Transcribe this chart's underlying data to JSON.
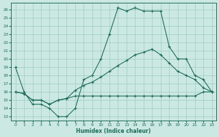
{
  "xlabel": "Humidex (Indice chaleur)",
  "xlim_min": -0.5,
  "xlim_max": 23.5,
  "ylim_min": 12.5,
  "ylim_max": 26.8,
  "yticks": [
    13,
    14,
    15,
    16,
    17,
    18,
    19,
    20,
    21,
    22,
    23,
    24,
    25,
    26
  ],
  "xticks": [
    0,
    1,
    2,
    3,
    4,
    5,
    6,
    7,
    8,
    9,
    10,
    11,
    12,
    13,
    14,
    15,
    16,
    17,
    18,
    19,
    20,
    21,
    22,
    23
  ],
  "line_color": "#1c6b58",
  "bg_color": "#cce8e2",
  "grid_color": "#99ccc0",
  "line1_x": [
    0,
    1,
    2,
    3,
    4,
    5,
    6,
    7,
    8,
    9,
    10,
    11,
    12,
    13,
    14,
    15,
    16,
    17,
    18,
    19,
    20,
    21,
    22,
    23
  ],
  "line1_y": [
    19,
    16,
    14.5,
    14.5,
    14,
    13,
    13,
    14,
    17.5,
    18,
    20,
    23,
    26.2,
    25.8,
    26.2,
    25.8,
    25.8,
    25.8,
    21.5,
    20,
    20,
    18,
    17.5,
    16
  ],
  "line2_x": [
    0,
    1,
    2,
    3,
    4,
    5,
    6,
    7,
    8,
    9,
    10,
    11,
    12,
    13,
    14,
    15,
    16,
    17,
    18,
    19,
    20,
    21,
    22,
    23
  ],
  "line2_y": [
    16,
    15.8,
    15,
    15,
    14.5,
    15,
    15.2,
    16.2,
    16.8,
    17.2,
    17.8,
    18.5,
    19.2,
    19.8,
    20.5,
    20.8,
    21.2,
    20.5,
    19.5,
    18.5,
    18,
    17.5,
    16.5,
    16
  ],
  "line3_x": [
    0,
    1,
    2,
    3,
    4,
    5,
    6,
    7,
    8,
    9,
    10,
    11,
    12,
    13,
    14,
    15,
    16,
    17,
    18,
    19,
    20,
    21,
    22,
    23
  ],
  "line3_y": [
    16,
    15.8,
    15,
    15,
    14.5,
    15,
    15.2,
    15.5,
    15.5,
    15.5,
    15.5,
    15.5,
    15.5,
    15.5,
    15.5,
    15.5,
    15.5,
    15.5,
    15.5,
    15.5,
    15.5,
    15.5,
    16,
    16
  ]
}
